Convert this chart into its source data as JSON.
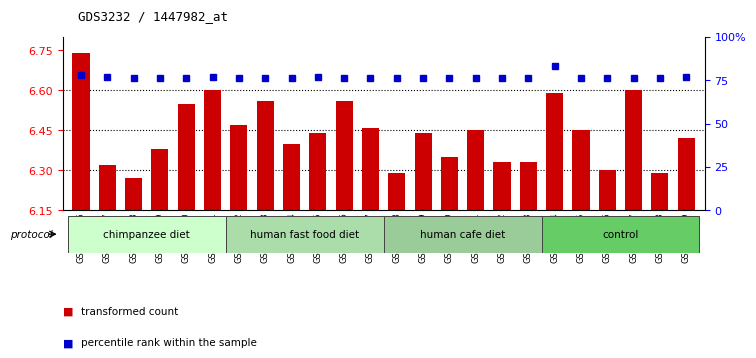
{
  "title": "GDS3232 / 1447982_at",
  "samples": [
    "GSM144526",
    "GSM144527",
    "GSM144528",
    "GSM144529",
    "GSM144530",
    "GSM144531",
    "GSM144532",
    "GSM144533",
    "GSM144534",
    "GSM144535",
    "GSM144536",
    "GSM144537",
    "GSM144538",
    "GSM144539",
    "GSM144540",
    "GSM144541",
    "GSM144542",
    "GSM144543",
    "GSM144544",
    "GSM144545",
    "GSM144546",
    "GSM144547",
    "GSM144548",
    "GSM144549"
  ],
  "bar_values": [
    6.74,
    6.32,
    6.27,
    6.38,
    6.55,
    6.6,
    6.47,
    6.56,
    6.4,
    6.44,
    6.56,
    6.46,
    6.29,
    6.44,
    6.35,
    6.45,
    6.33,
    6.33,
    6.59,
    6.45,
    6.3,
    6.6,
    6.29,
    6.42
  ],
  "percentile_values": [
    78,
    77,
    76,
    76,
    76,
    77,
    76,
    76,
    76,
    77,
    76,
    76,
    76,
    76,
    76,
    76,
    76,
    76,
    83,
    76,
    76,
    76,
    76,
    77
  ],
  "groups": [
    {
      "label": "chimpanzee diet",
      "start": 0,
      "end": 5,
      "color": "#ccffcc"
    },
    {
      "label": "human fast food diet",
      "start": 6,
      "end": 11,
      "color": "#aaddaa"
    },
    {
      "label": "human cafe diet",
      "start": 12,
      "end": 17,
      "color": "#99cc99"
    },
    {
      "label": "control",
      "start": 18,
      "end": 23,
      "color": "#66cc66"
    }
  ],
  "bar_color": "#cc0000",
  "dot_color": "#0000cc",
  "ylim_left": [
    6.15,
    6.8
  ],
  "ylim_right": [
    0,
    100
  ],
  "yticks_left": [
    6.15,
    6.3,
    6.45,
    6.6,
    6.75
  ],
  "yticks_right": [
    0,
    25,
    50,
    75,
    100
  ],
  "grid_values": [
    6.3,
    6.45,
    6.6
  ],
  "legend_items": [
    {
      "label": "transformed count",
      "color": "#cc0000"
    },
    {
      "label": "percentile rank within the sample",
      "color": "#0000cc"
    }
  ],
  "protocol_label": "protocol"
}
